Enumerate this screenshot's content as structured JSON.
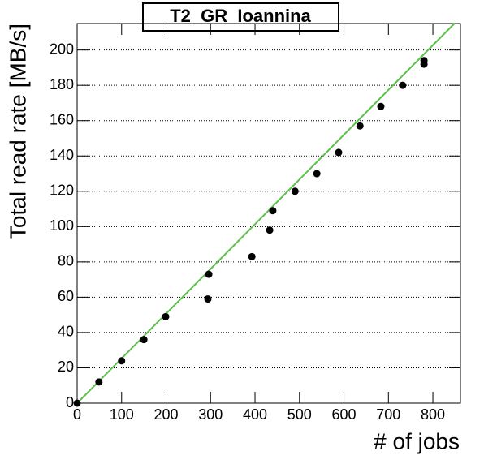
{
  "chart_data": {
    "type": "scatter",
    "title": "T2_GR_Ioannina",
    "x_label": "# of jobs",
    "y_label": "Total read rate [MB/s]",
    "series": [
      {
        "color": "#000000",
        "x": [
          0,
          49,
          100,
          150,
          199,
          294,
          296,
          393,
          433,
          440,
          490,
          539,
          588,
          636,
          683,
          732,
          780,
          780
        ],
        "values": [
          0,
          12,
          24,
          36,
          49,
          59,
          73,
          83,
          98,
          109,
          120,
          130,
          142,
          157,
          168,
          180,
          194,
          192
        ]
      }
    ],
    "fit": {
      "slope": 0.2534,
      "intercept": 0,
      "color": "#5cbf4c"
    },
    "xlim": [
      0,
      862
    ],
    "xticks": [
      0,
      100,
      200,
      300,
      400,
      500,
      600,
      700,
      800
    ],
    "ylim": [
      0,
      215
    ],
    "yticks": [
      0,
      20,
      40,
      60,
      80,
      100,
      120,
      140,
      160,
      180,
      200
    ],
    "grid": true
  }
}
